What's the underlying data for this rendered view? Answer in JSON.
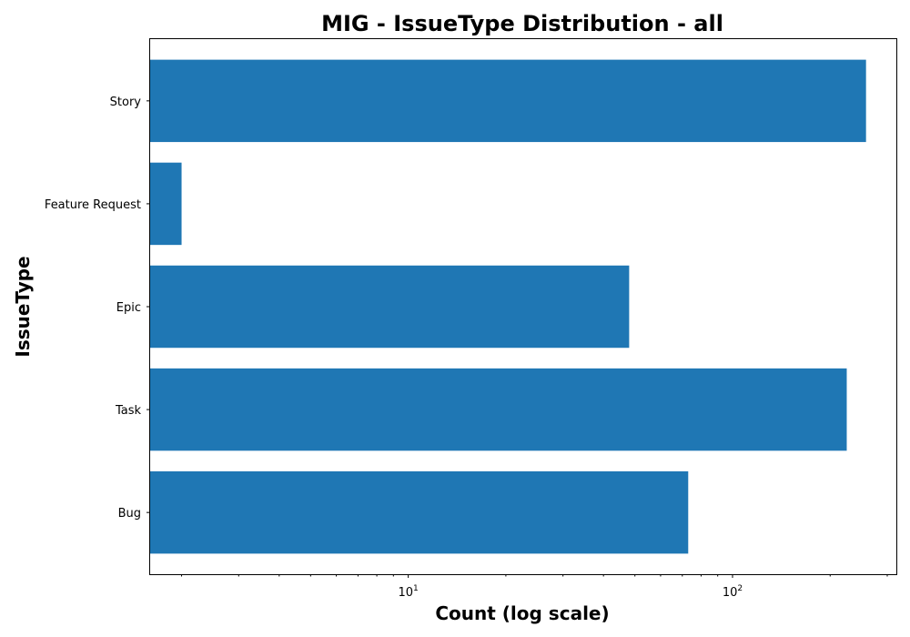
{
  "chart_data": {
    "type": "bar",
    "orientation": "horizontal",
    "title": "MIG - IssueType Distribution - all",
    "xlabel": "Count (log scale)",
    "ylabel": "IssueType",
    "x_scale": "log",
    "xlim": [
      1.6,
      320
    ],
    "categories": [
      "Bug",
      "Task",
      "Epic",
      "Feature Request",
      "Story"
    ],
    "values": [
      73,
      225,
      48,
      2,
      258
    ],
    "x_ticks": [
      {
        "base": "10",
        "exp": "1",
        "value": 10
      },
      {
        "base": "10",
        "exp": "2",
        "value": 100
      }
    ],
    "bar_color": "#1f77b4",
    "grid": false,
    "legend": "none"
  }
}
